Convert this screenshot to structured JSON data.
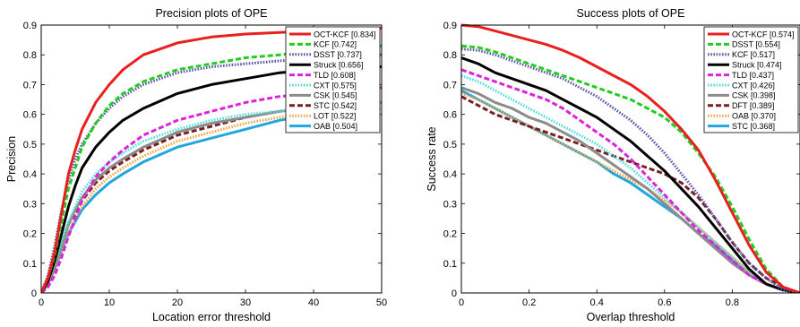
{
  "chart_data": [
    {
      "type": "line",
      "title": "Precision plots of OPE",
      "xlabel": "Location error threshold",
      "ylabel": "Precision",
      "xlim": [
        0,
        50
      ],
      "ylim": [
        0,
        0.9
      ],
      "xticks": [
        0,
        10,
        20,
        30,
        40,
        50
      ],
      "yticks": [
        0,
        0.1,
        0.2,
        0.3,
        0.4,
        0.5,
        0.6,
        0.7,
        0.8,
        0.9
      ],
      "grid": false,
      "legend_position": "top-right",
      "x": [
        0,
        1,
        2,
        3,
        4,
        5,
        6,
        8,
        10,
        12,
        15,
        20,
        25,
        30,
        35,
        40,
        45,
        50
      ],
      "series": [
        {
          "name": "OCT-KCF [0.834]",
          "color": "#e8201f",
          "style": "solid",
          "values": [
            0,
            0.05,
            0.14,
            0.27,
            0.4,
            0.48,
            0.55,
            0.64,
            0.7,
            0.75,
            0.8,
            0.84,
            0.86,
            0.87,
            0.875,
            0.88,
            0.885,
            0.89
          ]
        },
        {
          "name": "KCF [0.742]",
          "color": "#22cc22",
          "style": "dashed",
          "values": [
            0,
            0.05,
            0.13,
            0.24,
            0.35,
            0.42,
            0.49,
            0.57,
            0.63,
            0.67,
            0.71,
            0.75,
            0.77,
            0.79,
            0.8,
            0.81,
            0.82,
            0.83
          ]
        },
        {
          "name": "DSST [0.737]",
          "color": "#5a5aa8",
          "style": "dotted",
          "values": [
            0,
            0.06,
            0.16,
            0.28,
            0.38,
            0.45,
            0.5,
            0.57,
            0.62,
            0.66,
            0.7,
            0.74,
            0.76,
            0.77,
            0.78,
            0.785,
            0.79,
            0.8
          ]
        },
        {
          "name": "Struck [0.656]",
          "color": "#000000",
          "style": "solid",
          "values": [
            0,
            0.04,
            0.11,
            0.2,
            0.29,
            0.36,
            0.42,
            0.49,
            0.54,
            0.58,
            0.62,
            0.67,
            0.7,
            0.72,
            0.74,
            0.75,
            0.755,
            0.76
          ]
        },
        {
          "name": "TLD [0.608]",
          "color": "#dd22dd",
          "style": "dashed",
          "values": [
            0,
            0.02,
            0.06,
            0.12,
            0.19,
            0.25,
            0.31,
            0.39,
            0.44,
            0.48,
            0.53,
            0.58,
            0.61,
            0.64,
            0.66,
            0.67,
            0.68,
            0.69
          ]
        },
        {
          "name": "CXT [0.575]",
          "color": "#55dddd",
          "style": "dotted",
          "values": [
            0,
            0.04,
            0.1,
            0.17,
            0.24,
            0.29,
            0.34,
            0.4,
            0.44,
            0.47,
            0.51,
            0.55,
            0.58,
            0.6,
            0.61,
            0.62,
            0.63,
            0.64
          ]
        },
        {
          "name": "CSK [0.545]",
          "color": "#8c8c8c",
          "style": "solid",
          "values": [
            0,
            0.03,
            0.09,
            0.16,
            0.23,
            0.28,
            0.32,
            0.38,
            0.42,
            0.45,
            0.49,
            0.54,
            0.57,
            0.59,
            0.61,
            0.62,
            0.63,
            0.64
          ]
        },
        {
          "name": "STC [0.542]",
          "color": "#7a1f1f",
          "style": "dashed",
          "values": [
            0,
            0.03,
            0.09,
            0.16,
            0.23,
            0.27,
            0.31,
            0.37,
            0.41,
            0.44,
            0.48,
            0.53,
            0.56,
            0.59,
            0.61,
            0.62,
            0.63,
            0.64
          ]
        },
        {
          "name": "LOT [0.522]",
          "color": "#f2a64a",
          "style": "dotted",
          "values": [
            0,
            0.03,
            0.08,
            0.14,
            0.2,
            0.25,
            0.29,
            0.35,
            0.39,
            0.42,
            0.46,
            0.51,
            0.54,
            0.57,
            0.59,
            0.6,
            0.61,
            0.62
          ]
        },
        {
          "name": "OAB [0.504]",
          "color": "#22a6e0",
          "style": "solid",
          "values": [
            0,
            0.03,
            0.08,
            0.14,
            0.2,
            0.24,
            0.28,
            0.33,
            0.37,
            0.4,
            0.44,
            0.49,
            0.52,
            0.55,
            0.58,
            0.6,
            0.62,
            0.64
          ]
        }
      ]
    },
    {
      "type": "line",
      "title": "Success plots of OPE",
      "xlabel": "Overlap threshold",
      "ylabel": "Success rate",
      "xlim": [
        0,
        1
      ],
      "ylim": [
        0,
        0.9
      ],
      "xticks": [
        0,
        0.2,
        0.4,
        0.6,
        0.8
      ],
      "yticks": [
        0,
        0.1,
        0.2,
        0.3,
        0.4,
        0.5,
        0.6,
        0.7,
        0.8,
        0.9
      ],
      "grid": false,
      "legend_position": "top-right",
      "x": [
        0,
        0.05,
        0.1,
        0.15,
        0.2,
        0.25,
        0.3,
        0.35,
        0.4,
        0.45,
        0.5,
        0.55,
        0.6,
        0.65,
        0.7,
        0.75,
        0.8,
        0.85,
        0.9,
        0.95,
        1.0
      ],
      "series": [
        {
          "name": "OCT-KCF [0.574]",
          "color": "#e8201f",
          "style": "solid",
          "values": [
            0.9,
            0.895,
            0.88,
            0.865,
            0.85,
            0.835,
            0.815,
            0.79,
            0.76,
            0.73,
            0.7,
            0.66,
            0.61,
            0.55,
            0.48,
            0.38,
            0.27,
            0.16,
            0.07,
            0.02,
            0.0
          ]
        },
        {
          "name": "DSST [0.554]",
          "color": "#22cc22",
          "style": "dashed",
          "values": [
            0.83,
            0.825,
            0.81,
            0.79,
            0.77,
            0.75,
            0.73,
            0.71,
            0.69,
            0.67,
            0.65,
            0.62,
            0.59,
            0.54,
            0.47,
            0.39,
            0.29,
            0.18,
            0.08,
            0.02,
            0.0
          ]
        },
        {
          "name": "KCF [0.517]",
          "color": "#5a5aa8",
          "style": "dotted",
          "values": [
            0.82,
            0.815,
            0.8,
            0.78,
            0.76,
            0.74,
            0.72,
            0.69,
            0.66,
            0.62,
            0.58,
            0.53,
            0.47,
            0.4,
            0.33,
            0.25,
            0.17,
            0.1,
            0.05,
            0.01,
            0.0
          ]
        },
        {
          "name": "Struck [0.474]",
          "color": "#000000",
          "style": "solid",
          "values": [
            0.79,
            0.77,
            0.74,
            0.72,
            0.7,
            0.68,
            0.65,
            0.62,
            0.59,
            0.55,
            0.51,
            0.46,
            0.41,
            0.35,
            0.29,
            0.22,
            0.15,
            0.08,
            0.03,
            0.01,
            0.0
          ]
        },
        {
          "name": "TLD [0.437]",
          "color": "#dd22dd",
          "style": "dashed",
          "values": [
            0.75,
            0.73,
            0.71,
            0.69,
            0.67,
            0.65,
            0.62,
            0.58,
            0.54,
            0.5,
            0.45,
            0.39,
            0.33,
            0.27,
            0.21,
            0.16,
            0.11,
            0.06,
            0.03,
            0.01,
            0.0
          ]
        },
        {
          "name": "CXT [0.426]",
          "color": "#55dddd",
          "style": "dotted",
          "values": [
            0.73,
            0.71,
            0.68,
            0.65,
            0.62,
            0.59,
            0.56,
            0.53,
            0.5,
            0.46,
            0.42,
            0.37,
            0.32,
            0.27,
            0.22,
            0.17,
            0.12,
            0.07,
            0.03,
            0.01,
            0.0
          ]
        },
        {
          "name": "CSK [0.398]",
          "color": "#8c8c8c",
          "style": "solid",
          "values": [
            0.69,
            0.67,
            0.64,
            0.62,
            0.59,
            0.57,
            0.54,
            0.51,
            0.47,
            0.43,
            0.39,
            0.35,
            0.3,
            0.25,
            0.2,
            0.15,
            0.1,
            0.06,
            0.03,
            0.01,
            0.0
          ]
        },
        {
          "name": "DFT [0.389]",
          "color": "#7a1f1f",
          "style": "dashed",
          "values": [
            0.66,
            0.63,
            0.6,
            0.58,
            0.56,
            0.54,
            0.52,
            0.5,
            0.48,
            0.46,
            0.44,
            0.42,
            0.4,
            0.37,
            0.32,
            0.25,
            0.17,
            0.1,
            0.05,
            0.02,
            0.0
          ]
        },
        {
          "name": "OAB [0.370]",
          "color": "#f2a64a",
          "style": "dotted",
          "values": [
            0.67,
            0.65,
            0.62,
            0.59,
            0.56,
            0.53,
            0.5,
            0.47,
            0.44,
            0.41,
            0.38,
            0.35,
            0.31,
            0.27,
            0.22,
            0.17,
            0.12,
            0.07,
            0.03,
            0.01,
            0.0
          ]
        },
        {
          "name": "STC [0.368]",
          "color": "#22a6e0",
          "style": "solid",
          "values": [
            0.68,
            0.65,
            0.62,
            0.59,
            0.56,
            0.53,
            0.5,
            0.47,
            0.44,
            0.4,
            0.37,
            0.33,
            0.29,
            0.25,
            0.2,
            0.16,
            0.11,
            0.06,
            0.03,
            0.01,
            0.0
          ]
        }
      ]
    }
  ]
}
